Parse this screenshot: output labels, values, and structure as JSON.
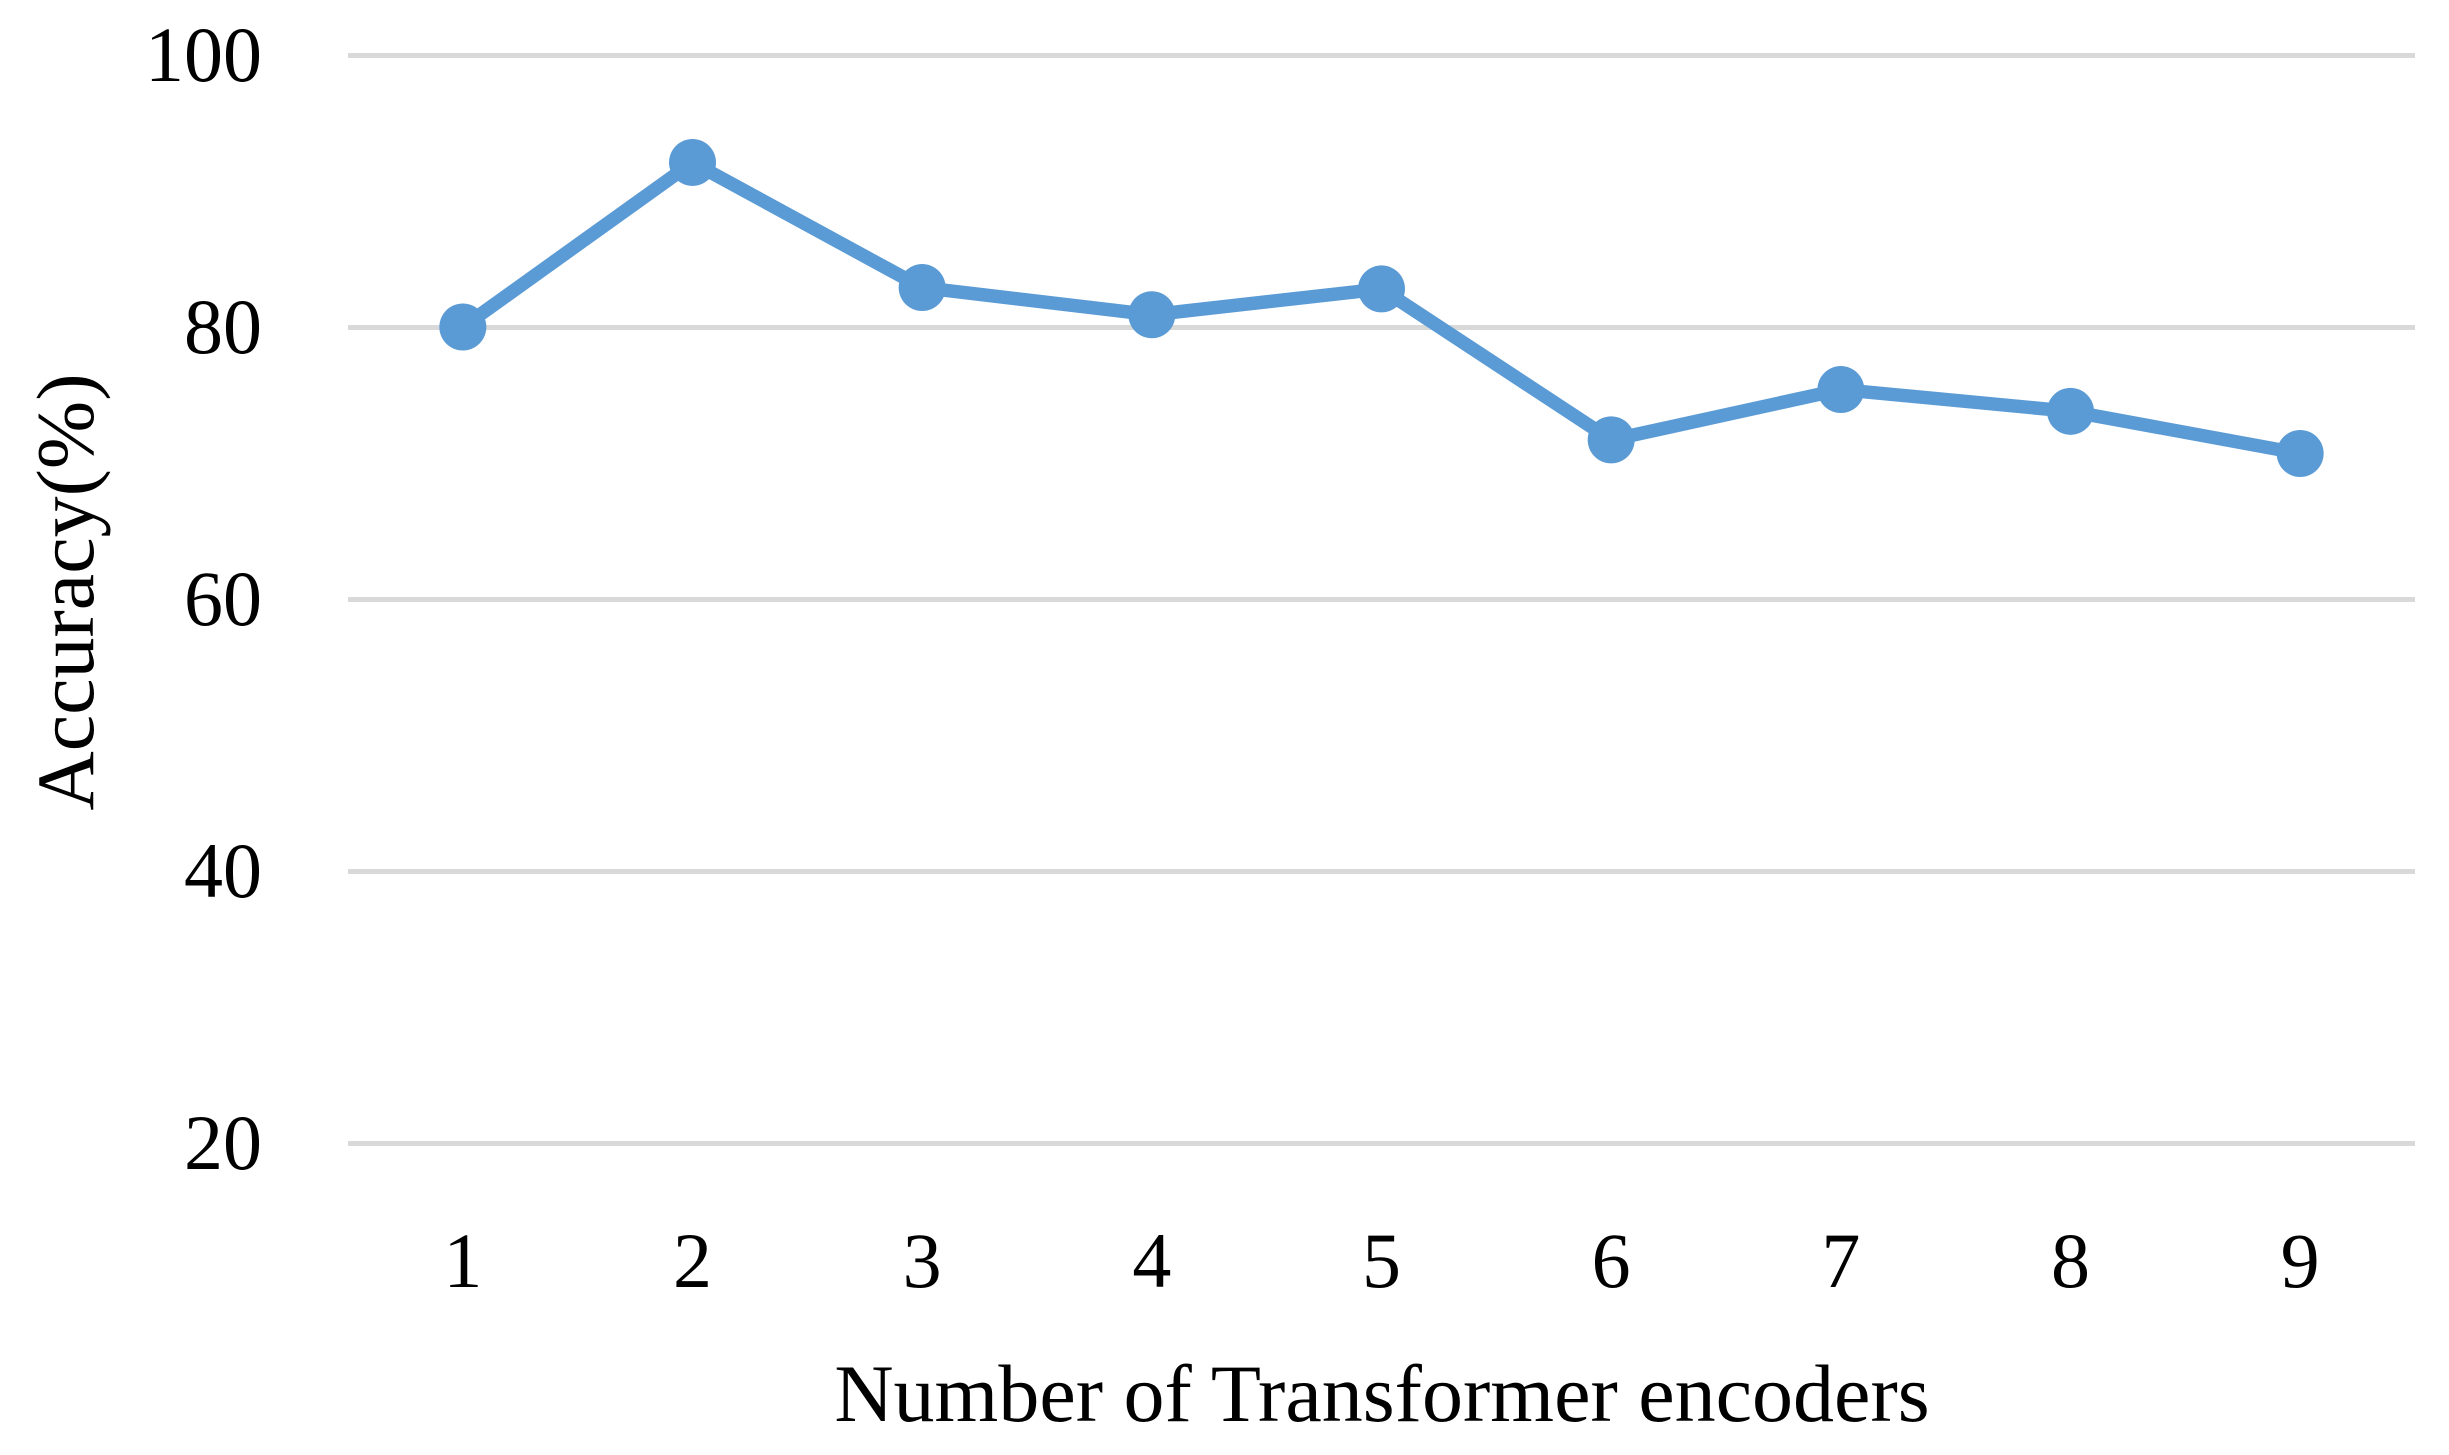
{
  "figure": {
    "background_color": "#ffffff",
    "text_color": "#000000"
  },
  "chart_data": {
    "type": "line",
    "title": "",
    "xlabel": "Number of Transformer encoders",
    "ylabel": "Accuracy(%)",
    "categories": [
      "1",
      "2",
      "3",
      "4",
      "5",
      "6",
      "7",
      "8",
      "9"
    ],
    "series": [
      {
        "name": "Accuracy (%)",
        "values": [
          80.0,
          92.1,
          82.9,
          80.9,
          82.8,
          71.7,
          75.4,
          73.8,
          70.7
        ]
      }
    ],
    "y_ticks": [
      100,
      80,
      60,
      40,
      20
    ],
    "ylim": [
      20,
      100
    ],
    "xlim_categories": true,
    "grid": "horizontal-only",
    "legend_position": "none",
    "line_color": "#5B9BD5",
    "marker_shape": "circle",
    "marker_color": "#5B9BD5",
    "gridline_color": "#D9D9D9"
  }
}
